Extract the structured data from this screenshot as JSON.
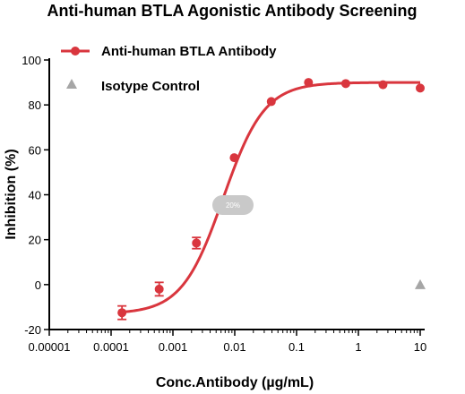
{
  "chart_data": {
    "type": "scatter",
    "title": "Anti-human BTLA Agonistic Antibody Screening",
    "xlabel": "Conc.Antibody (µg/mL)",
    "ylabel": "Inhibition (%)",
    "x_scale": "log",
    "xlim": [
      1e-05,
      10
    ],
    "ylim": [
      -20,
      100
    ],
    "x_ticks": [
      1e-05,
      0.0001,
      0.001,
      0.01,
      0.1,
      1,
      10
    ],
    "x_tick_labels": [
      "0.00001",
      "0.0001",
      "0.001",
      "0.01",
      "0.1",
      "1",
      "10"
    ],
    "y_ticks": [
      -20,
      0,
      20,
      40,
      60,
      80,
      100
    ],
    "y_tick_labels": [
      "-20",
      "0",
      "20",
      "40",
      "60",
      "80",
      "100"
    ],
    "grid": false,
    "legend_position": "top-left",
    "series": [
      {
        "name": "Anti-human BTLA Antibody",
        "color": "#d9363e",
        "marker": "circle",
        "fit": "sigmoidal",
        "fit_params": {
          "bottom": -13,
          "top": 90,
          "ec50": 0.0065,
          "hill": 1.3
        },
        "x": [
          0.00015,
          0.0006,
          0.0024,
          0.0098,
          0.039,
          0.156,
          0.625,
          2.5,
          10
        ],
        "y": [
          -12.5,
          -2,
          18.5,
          56.5,
          81.5,
          90,
          89.5,
          89,
          87.5
        ],
        "err": [
          3,
          3,
          2.5,
          0,
          0,
          0,
          0,
          0,
          0
        ]
      },
      {
        "name": "Isotype Control",
        "color": "#a6a6a6",
        "marker": "triangle",
        "x": [
          10
        ],
        "y": [
          0
        ]
      }
    ],
    "badge": "20%"
  }
}
